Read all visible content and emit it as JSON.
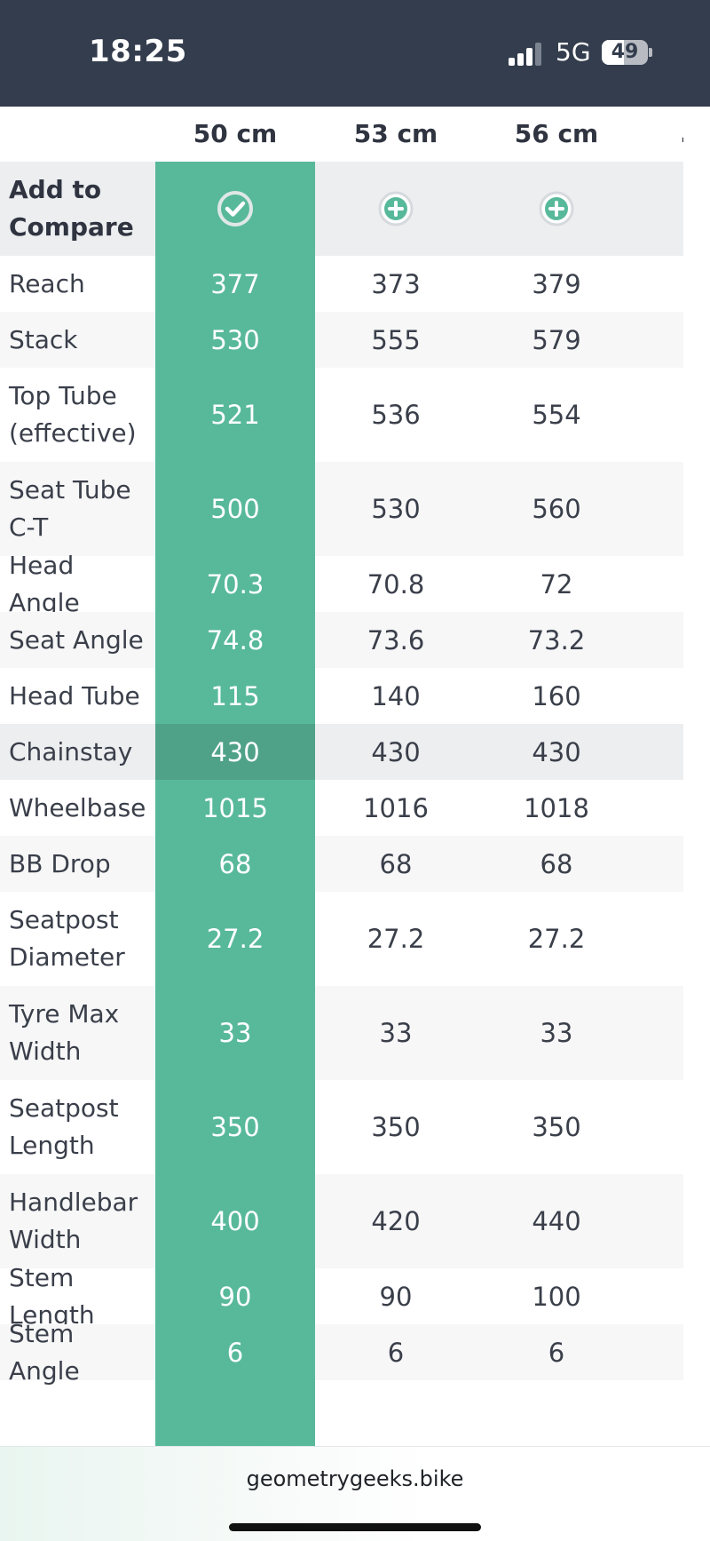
{
  "status_bar": {
    "time": "18:25",
    "network": "5G",
    "battery": "49",
    "battery_level": 0.49,
    "signal_icon": "signal-bars-icon",
    "battery_icon": "battery-icon"
  },
  "table": {
    "sizes": [
      "50 cm",
      "53 cm",
      "56 cm"
    ],
    "selected_index": 0,
    "compare_label": "Add to Compare",
    "compare_icons": [
      "check-circle-icon",
      "plus-circle-icon",
      "plus-circle-icon"
    ],
    "rows": [
      {
        "label": "Reach",
        "values": [
          "377",
          "373",
          "379"
        ]
      },
      {
        "label": "Stack",
        "values": [
          "530",
          "555",
          "579"
        ]
      },
      {
        "label": "Top Tube (effective)",
        "values": [
          "521",
          "536",
          "554"
        ]
      },
      {
        "label": "Seat Tube C-T",
        "values": [
          "500",
          "530",
          "560"
        ]
      },
      {
        "label": "Head Angle",
        "values": [
          "70.3",
          "70.8",
          "72"
        ]
      },
      {
        "label": "Seat Angle",
        "values": [
          "74.8",
          "73.6",
          "73.2"
        ]
      },
      {
        "label": "Head Tube",
        "values": [
          "115",
          "140",
          "160"
        ]
      },
      {
        "label": "Chainstay",
        "values": [
          "430",
          "430",
          "430"
        ]
      },
      {
        "label": "Wheelbase",
        "values": [
          "1015",
          "1016",
          "1018"
        ]
      },
      {
        "label": "BB Drop",
        "values": [
          "68",
          "68",
          "68"
        ]
      },
      {
        "label": "Seatpost Diameter",
        "values": [
          "27.2",
          "27.2",
          "27.2"
        ]
      },
      {
        "label": "Tyre Max Width",
        "values": [
          "33",
          "33",
          "33"
        ]
      },
      {
        "label": "Seatpost Length",
        "values": [
          "350",
          "350",
          "350"
        ]
      },
      {
        "label": "Handlebar Width",
        "values": [
          "400",
          "420",
          "440"
        ]
      },
      {
        "label": "Stem Length",
        "values": [
          "90",
          "90",
          "100"
        ]
      },
      {
        "label": "Stem Angle",
        "values": [
          "6",
          "6",
          "6"
        ]
      }
    ],
    "highlighted_row": 7
  },
  "colors": {
    "selected_column": "#58b99a",
    "selected_highlight": "#4fa288",
    "highlight_row": "#eceef0",
    "header_bg": "#333d4d"
  },
  "footer": {
    "url": "geometrygeeks.bike"
  }
}
